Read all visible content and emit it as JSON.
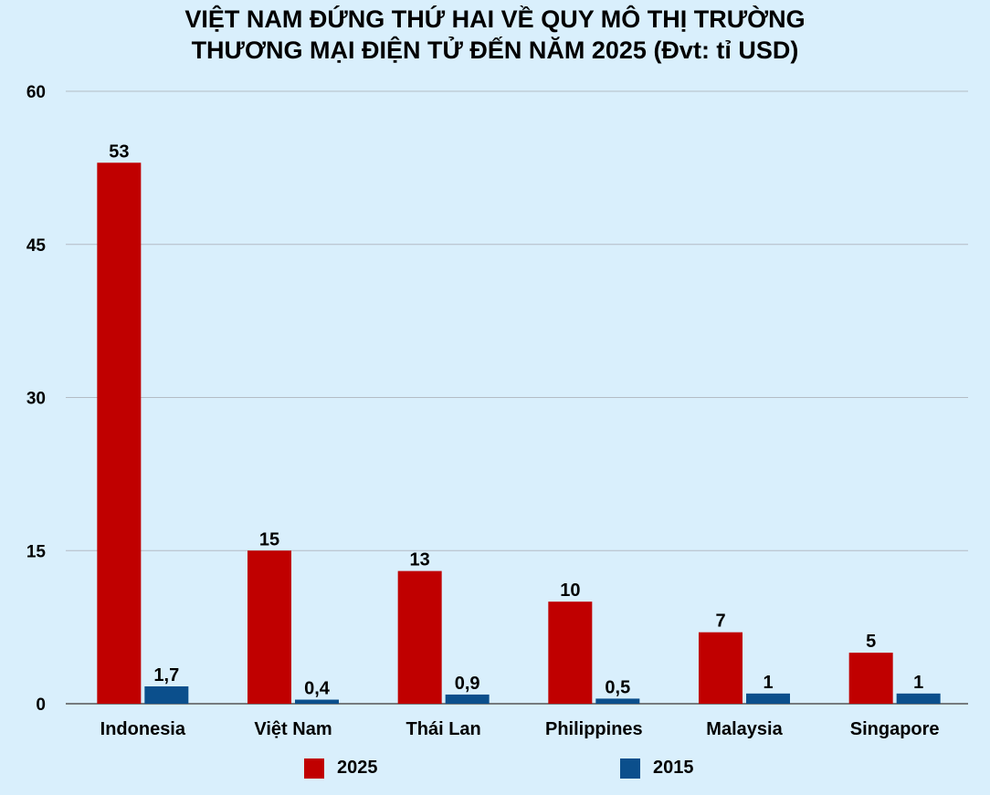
{
  "chart_data": {
    "type": "bar",
    "title_lines": [
      "VIỆT NAM ĐỨNG THỨ HAI VỀ QUY MÔ THỊ TRƯỜNG",
      "THƯƠNG MẠI ĐIỆN TỬ ĐẾN NĂM 2025 (Đvt: tỉ USD)"
    ],
    "categories": [
      "Indonesia",
      "Việt Nam",
      "Thái Lan",
      "Philippines",
      "Malaysia",
      "Singapore"
    ],
    "series": [
      {
        "name": "2025",
        "color": "#c00000",
        "values": [
          53,
          15,
          13,
          10,
          7,
          5
        ],
        "labels": [
          "53",
          "15",
          "13",
          "10",
          "7",
          "5"
        ]
      },
      {
        "name": "2015",
        "color": "#0b4f8c",
        "values": [
          1.7,
          0.4,
          0.9,
          0.5,
          1,
          1
        ],
        "labels": [
          "1,7",
          "0,4",
          "0,9",
          "0,5",
          "1",
          "1"
        ]
      }
    ],
    "yticks": [
      "0",
      "15",
      "30",
      "45",
      "60"
    ],
    "ylim": [
      0,
      60
    ],
    "grid": true,
    "legend_position": "bottom"
  }
}
